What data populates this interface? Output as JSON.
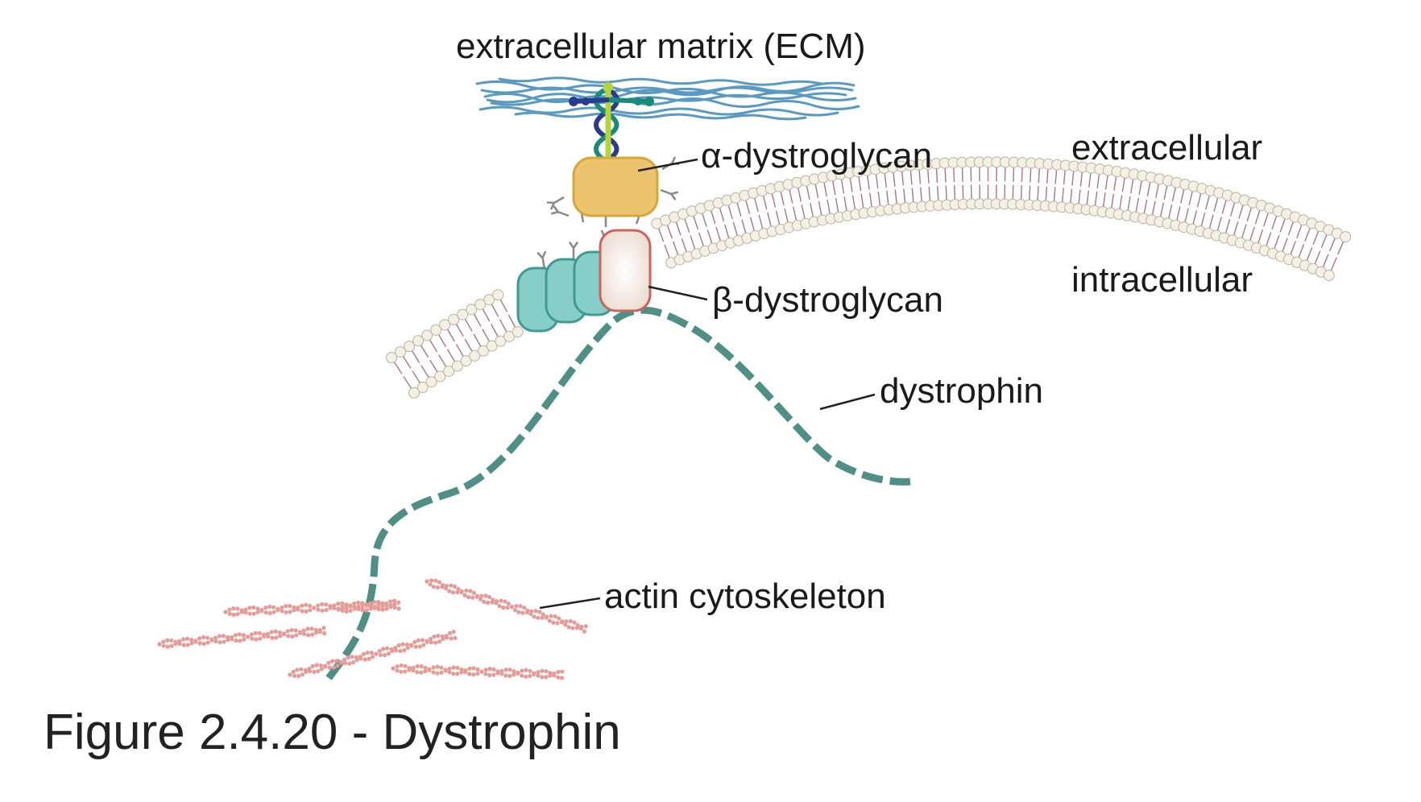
{
  "labels": {
    "ecm": "extracellular matrix (ECM)",
    "alpha_dystroglycan": "α-dystroglycan",
    "beta_dystroglycan": "β-dystroglycan",
    "dystrophin": "dystrophin",
    "actin": "actin cytoskeleton",
    "extracellular": "extracellular",
    "intracellular": "intracellular"
  },
  "caption": "Figure 2.4.20 - Dystrophin",
  "colors": {
    "ecm_fibers": "#5b9ac0",
    "alpha_dystroglycan_fill": "#ecc46e",
    "alpha_dystroglycan_stroke": "#d4a83a",
    "beta_dystroglycan_fill": "#f4ebe2",
    "beta_dystroglycan_stroke": "#c8665e",
    "sarcoglycan_fill": "#88cec8",
    "sarcoglycan_stroke": "#3f9a92",
    "dystrophin": "#4f8f86",
    "actin": "#e39c98",
    "membrane_head": "#f5f0e4",
    "membrane_tail": "#a67787",
    "glycan": "#888888",
    "laminin_green": "#1a8b7a",
    "laminin_navy": "#2a3a8c",
    "laminin_lime": "#b5d43a"
  }
}
